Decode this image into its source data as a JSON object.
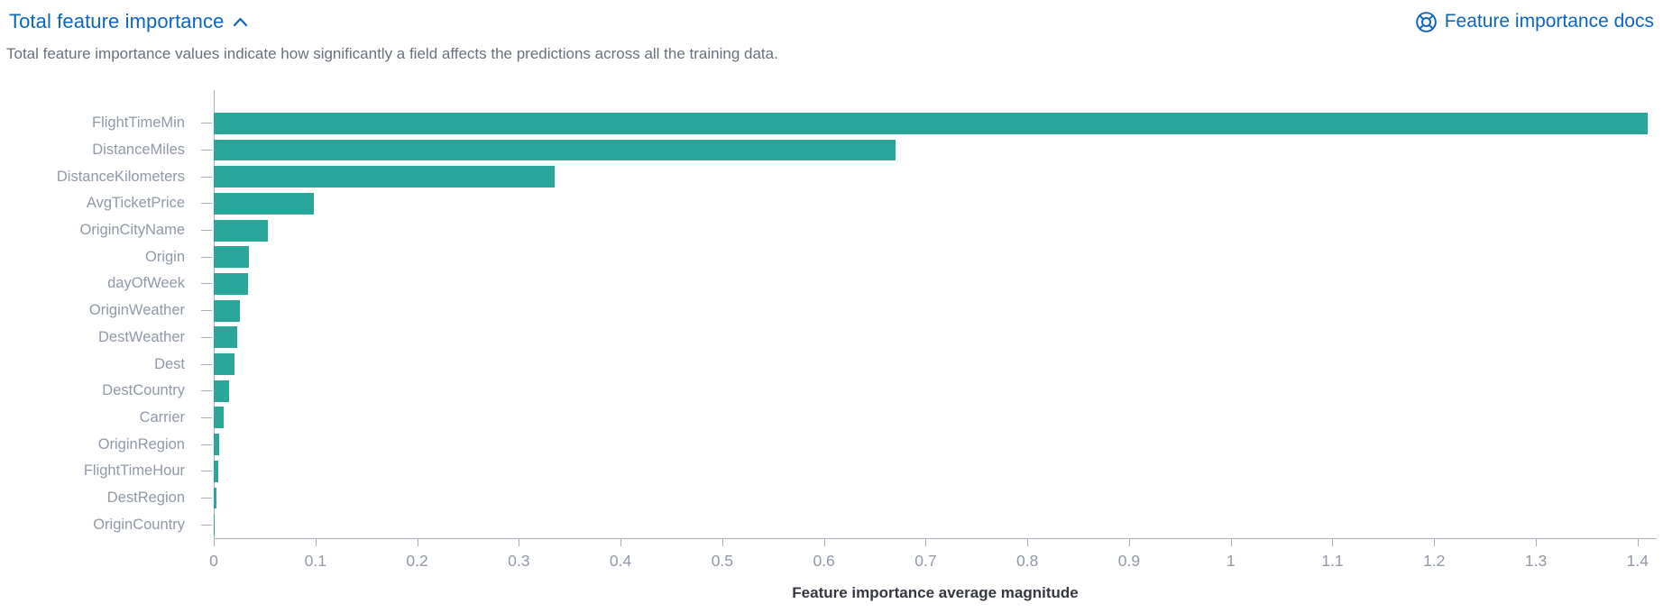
{
  "header": {
    "title": "Total feature importance",
    "docs_label": "Feature importance docs"
  },
  "subtitle": "Total feature importance values indicate how significantly a field affects the predictions across all the training data.",
  "icons": {
    "collapse": "chevron-up-icon",
    "docs": "help-lifebuoy-icon"
  },
  "colors": {
    "bar": "#2aa69a",
    "link": "#0d65c1",
    "axis": "#a9b0bc",
    "ylabel": "#8f99a8",
    "subtitle": "#69707d",
    "axis_title": "#343741"
  },
  "chart_data": {
    "type": "bar",
    "orientation": "horizontal",
    "title": "Total feature importance",
    "xlabel": "Feature importance average magnitude",
    "ylabel": "",
    "legend": "off",
    "grid": "off",
    "xlim": [
      0,
      1.425
    ],
    "xtick_labels": [
      "0",
      "0.1",
      "0.2",
      "0.3",
      "0.4",
      "0.5",
      "0.6",
      "0.7",
      "0.8",
      "0.9",
      "1",
      "1.1",
      "1.2",
      "1.3",
      "1.4"
    ],
    "categories": [
      "FlightTimeMin",
      "DistanceMiles",
      "DistanceKilometers",
      "AvgTicketPrice",
      "OriginCityName",
      "Origin",
      "dayOfWeek",
      "OriginWeather",
      "DestWeather",
      "Dest",
      "DestCountry",
      "Carrier",
      "OriginRegion",
      "FlightTimeHour",
      "DestRegion",
      "OriginCountry"
    ],
    "values": [
      1.41,
      0.67,
      0.335,
      0.098,
      0.053,
      0.035,
      0.034,
      0.026,
      0.023,
      0.02,
      0.015,
      0.01,
      0.005,
      0.004,
      0.003,
      0.001
    ]
  }
}
